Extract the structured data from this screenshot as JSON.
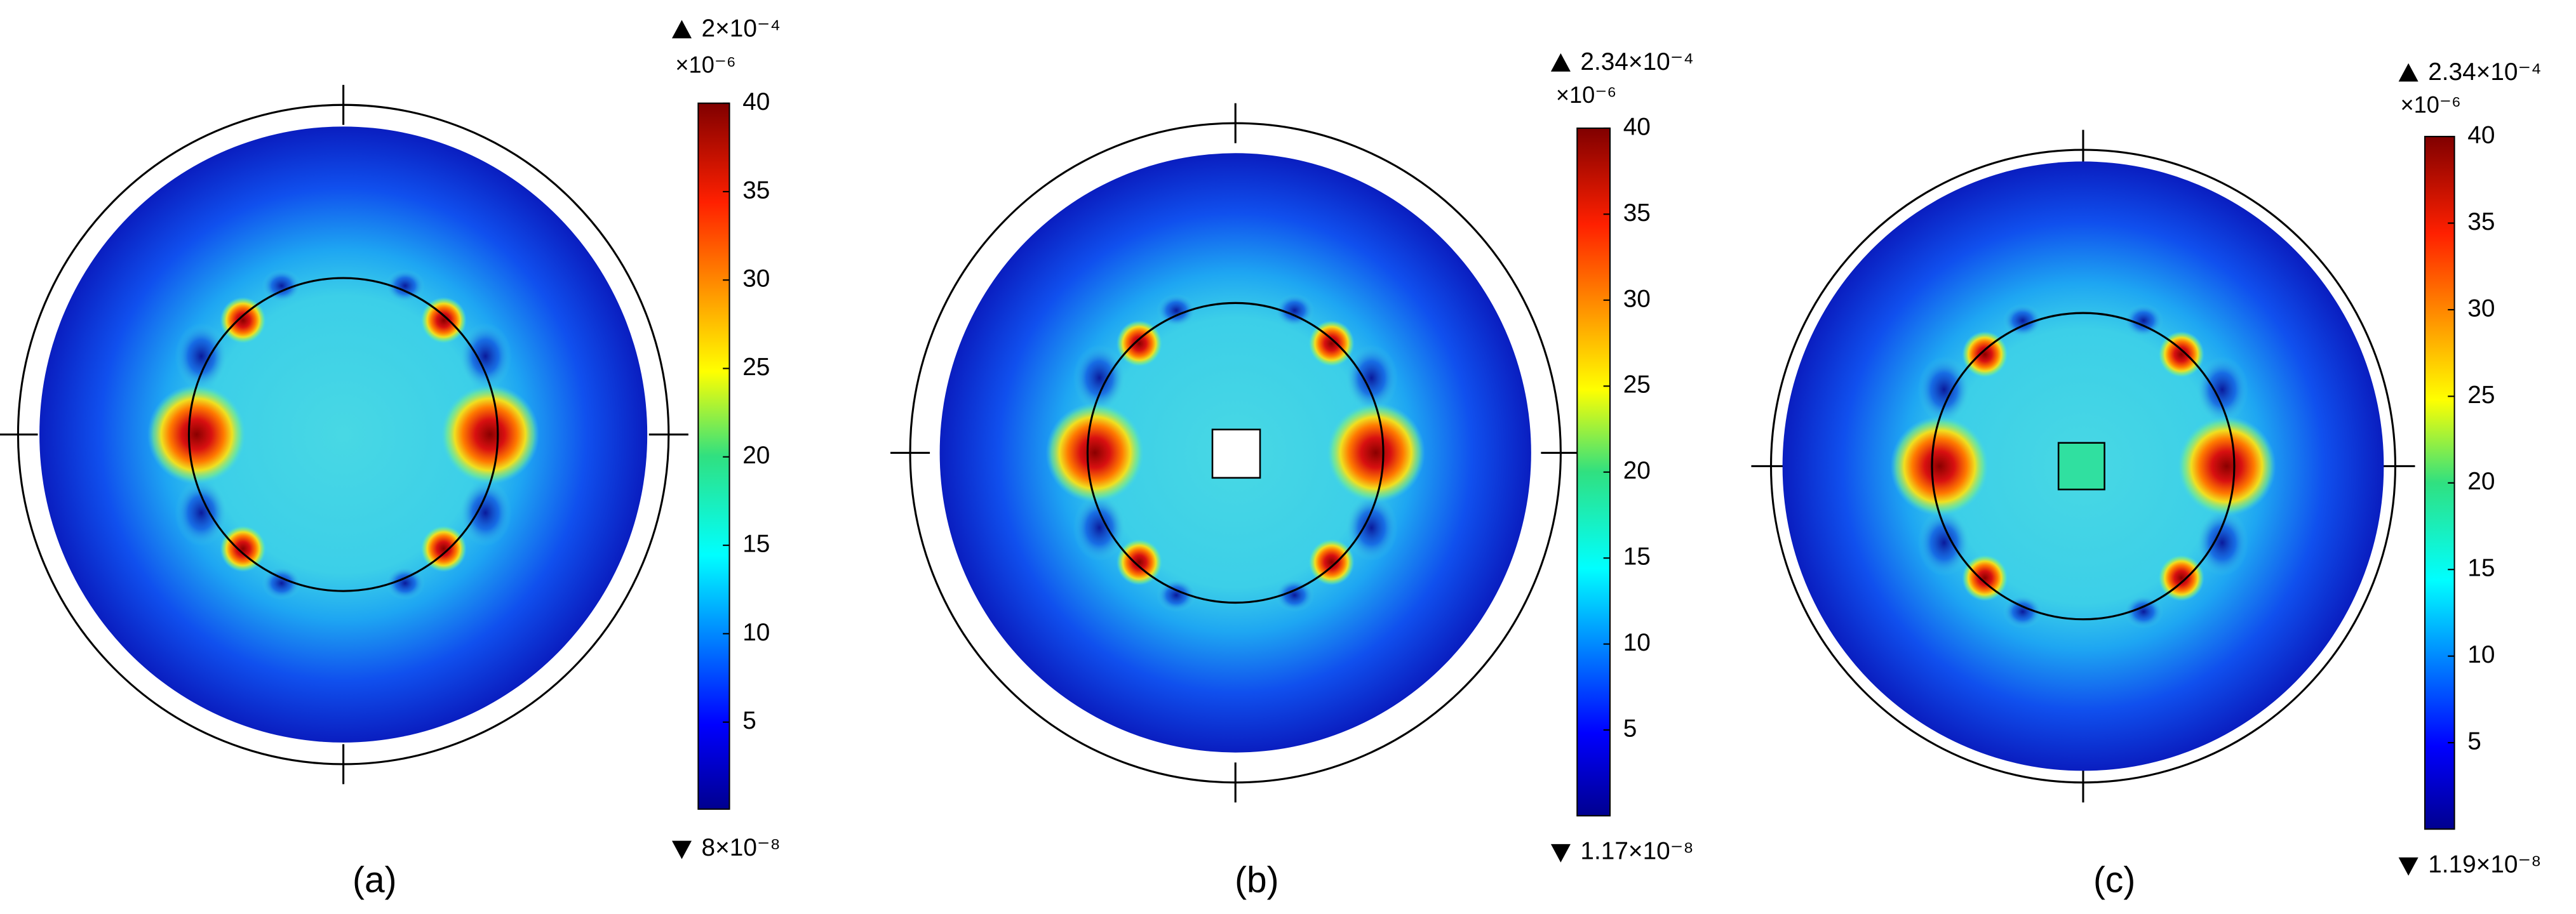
{
  "chart_data": [
    {
      "type": "field",
      "label": "(a)",
      "max_label": "2×10⁻⁴",
      "min_label": "8×10⁻⁸",
      "colorbar_unit": "×10⁻⁶",
      "clim": [
        0.08,
        40
      ],
      "cticks": [
        5,
        10,
        15,
        20,
        25,
        30,
        35,
        40
      ],
      "inclusion": "none"
    },
    {
      "type": "field",
      "label": "(b)",
      "max_label": "2.34×10⁻⁴",
      "min_label": "1.17×10⁻⁸",
      "colorbar_unit": "×10⁻⁶",
      "clim": [
        0.0117,
        40
      ],
      "cticks": [
        5,
        10,
        15,
        20,
        25,
        30,
        35,
        40
      ],
      "inclusion": "hole"
    },
    {
      "type": "field",
      "label": "(c)",
      "max_label": "2.34×10⁻⁴",
      "min_label": "1.19×10⁻⁸",
      "colorbar_unit": "×10⁻⁶",
      "clim": [
        0.0119,
        40
      ],
      "cticks": [
        5,
        10,
        15,
        20,
        25,
        30,
        35,
        40
      ],
      "inclusion": "filled"
    }
  ]
}
